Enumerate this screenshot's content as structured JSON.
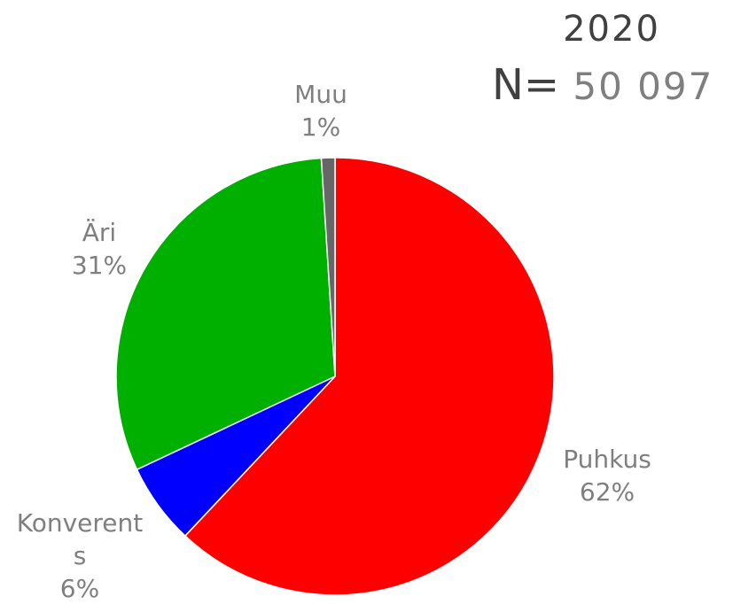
{
  "chart_data": {
    "type": "pie",
    "title": "2020",
    "n_label": "N=",
    "n_value": "50 097",
    "categories": [
      "Puhkus",
      "Konverents",
      "Äri",
      "Muu"
    ],
    "values": [
      62,
      6,
      31,
      1
    ],
    "value_labels": [
      "62%",
      "6%",
      "31%",
      "1%"
    ],
    "colors": [
      "#ff0000",
      "#0000ff",
      "#00b000",
      "#666666"
    ]
  }
}
